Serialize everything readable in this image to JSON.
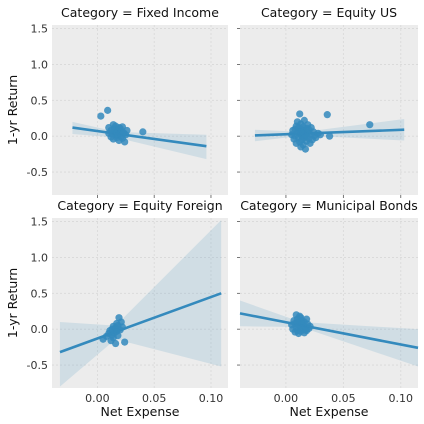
{
  "colors": {
    "point": "#348abd",
    "line": "#348abd",
    "band": "#348abd",
    "panel_bg": "#ececec"
  },
  "chart_data": {
    "type": "scatter",
    "facet_by": "Category",
    "shared_x": true,
    "shared_y": true,
    "xlabel": "Net Expense",
    "ylabel": "1-yr Return",
    "xlim": [
      -0.04,
      0.115
    ],
    "ylim": [
      -0.82,
      1.55
    ],
    "x_ticks": [
      "0.00",
      "0.05",
      "0.10"
    ],
    "y_ticks": [
      "-0.5",
      "0.0",
      "0.5",
      "1.0",
      "1.5"
    ],
    "x_tick_values": [
      0.0,
      0.05,
      0.1
    ],
    "y_tick_values": [
      -0.5,
      0.0,
      0.5,
      1.0,
      1.5
    ],
    "grid": true,
    "panels": [
      {
        "title": "Category = Fixed Income",
        "points": [
          [
            0.003,
            0.28
          ],
          [
            0.009,
            0.36
          ],
          [
            0.01,
            0.12
          ],
          [
            0.012,
            0.08
          ],
          [
            0.013,
            0.03
          ],
          [
            0.014,
            0.16
          ],
          [
            0.014,
            -0.04
          ],
          [
            0.015,
            0.06
          ],
          [
            0.015,
            0.1
          ],
          [
            0.016,
            0.02
          ],
          [
            0.016,
            0.14
          ],
          [
            0.017,
            -0.02
          ],
          [
            0.017,
            0.05
          ],
          [
            0.018,
            0.09
          ],
          [
            0.018,
            0.01
          ],
          [
            0.019,
            0.12
          ],
          [
            0.019,
            -0.06
          ],
          [
            0.02,
            0.04
          ],
          [
            0.02,
            0.11
          ],
          [
            0.021,
            0.0
          ],
          [
            0.021,
            0.07
          ],
          [
            0.022,
            -0.03
          ],
          [
            0.022,
            0.13
          ],
          [
            0.023,
            0.05
          ],
          [
            0.024,
            -0.08
          ],
          [
            0.025,
            0.02
          ],
          [
            0.026,
            0.08
          ],
          [
            0.012,
            -0.01
          ],
          [
            0.01,
            0.04
          ],
          [
            0.04,
            0.06
          ]
        ],
        "fit": {
          "x": [
            -0.022,
            0.096
          ],
          "y": [
            0.12,
            -0.14
          ]
        },
        "band": {
          "x": [
            -0.022,
            0.017,
            0.096
          ],
          "upper": [
            0.2,
            0.06,
            0.02
          ],
          "lower": [
            0.03,
            -0.02,
            -0.32
          ]
        }
      },
      {
        "title": "Category = Equity US",
        "points": [
          [
            0.005,
            0.02
          ],
          [
            0.006,
            0.08
          ],
          [
            0.007,
            -0.04
          ],
          [
            0.008,
            0.1
          ],
          [
            0.008,
            0.0
          ],
          [
            0.009,
            0.14
          ],
          [
            0.009,
            -0.1
          ],
          [
            0.01,
            0.05
          ],
          [
            0.01,
            0.2
          ],
          [
            0.011,
            -0.02
          ],
          [
            0.011,
            0.12
          ],
          [
            0.012,
            0.31
          ],
          [
            0.012,
            -0.08
          ],
          [
            0.012,
            0.07
          ],
          [
            0.013,
            0.03
          ],
          [
            0.013,
            -0.15
          ],
          [
            0.013,
            0.17
          ],
          [
            0.014,
            0.0
          ],
          [
            0.014,
            0.09
          ],
          [
            0.014,
            -0.05
          ],
          [
            0.015,
            0.13
          ],
          [
            0.015,
            -0.12
          ],
          [
            0.015,
            0.04
          ],
          [
            0.016,
            0.22
          ],
          [
            0.016,
            -0.02
          ],
          [
            0.016,
            0.08
          ],
          [
            0.017,
            -0.18
          ],
          [
            0.017,
            0.01
          ],
          [
            0.018,
            0.11
          ],
          [
            0.018,
            -0.07
          ],
          [
            0.019,
            0.05
          ],
          [
            0.019,
            0.16
          ],
          [
            0.02,
            -0.03
          ],
          [
            0.02,
            0.09
          ],
          [
            0.021,
            -0.1
          ],
          [
            0.021,
            0.03
          ],
          [
            0.022,
            0.12
          ],
          [
            0.023,
            -0.05
          ],
          [
            0.024,
            0.06
          ],
          [
            0.025,
            0.01
          ],
          [
            0.026,
            -0.02
          ],
          [
            0.028,
            0.04
          ],
          [
            0.03,
            0.02
          ],
          [
            0.018,
            0.0
          ],
          [
            0.013,
            0.06
          ],
          [
            0.036,
            0.3
          ],
          [
            0.038,
            0.0
          ],
          [
            0.073,
            0.16
          ]
        ],
        "fit": {
          "x": [
            -0.027,
            0.103
          ],
          "y": [
            0.01,
            0.09
          ]
        },
        "band": {
          "x": [
            -0.027,
            0.016,
            0.103
          ],
          "upper": [
            0.09,
            0.06,
            0.24
          ],
          "lower": [
            -0.07,
            0.01,
            -0.06
          ]
        }
      },
      {
        "title": "Category = Equity Foreign",
        "points": [
          [
            0.005,
            -0.14
          ],
          [
            0.008,
            -0.1
          ],
          [
            0.01,
            -0.06
          ],
          [
            0.011,
            -0.02
          ],
          [
            0.012,
            -0.16
          ],
          [
            0.013,
            -0.08
          ],
          [
            0.013,
            0.0
          ],
          [
            0.014,
            -0.12
          ],
          [
            0.014,
            0.04
          ],
          [
            0.015,
            -0.05
          ],
          [
            0.016,
            -0.2
          ],
          [
            0.016,
            0.02
          ],
          [
            0.017,
            -0.03
          ],
          [
            0.017,
            0.08
          ],
          [
            0.018,
            -0.09
          ],
          [
            0.018,
            0.05
          ],
          [
            0.019,
            0.16
          ],
          [
            0.02,
            -0.01
          ],
          [
            0.021,
            0.1
          ],
          [
            0.022,
            0.03
          ],
          [
            0.024,
            -0.18
          ]
        ],
        "fit": {
          "x": [
            -0.033,
            0.109
          ],
          "y": [
            -0.32,
            0.5
          ]
        },
        "band": {
          "x": [
            -0.033,
            0.016,
            0.109
          ],
          "upper": [
            0.1,
            0.05,
            1.52
          ],
          "lower": [
            -0.8,
            -0.14,
            -0.52
          ]
        }
      },
      {
        "title": "Category = Municipal Bonds",
        "points": [
          [
            0.005,
            0.06
          ],
          [
            0.006,
            0.0
          ],
          [
            0.007,
            0.12
          ],
          [
            0.008,
            -0.04
          ],
          [
            0.008,
            0.08
          ],
          [
            0.009,
            0.2
          ],
          [
            0.009,
            0.02
          ],
          [
            0.01,
            -0.02
          ],
          [
            0.01,
            0.14
          ],
          [
            0.011,
            0.06
          ],
          [
            0.011,
            -0.06
          ],
          [
            0.012,
            0.1
          ],
          [
            0.012,
            0.18
          ],
          [
            0.013,
            0.02
          ],
          [
            0.013,
            -0.03
          ],
          [
            0.014,
            0.08
          ],
          [
            0.014,
            0.12
          ],
          [
            0.015,
            0.0
          ],
          [
            0.015,
            0.05
          ],
          [
            0.016,
            -0.05
          ],
          [
            0.016,
            0.1
          ],
          [
            0.017,
            0.03
          ],
          [
            0.018,
            0.14
          ],
          [
            0.018,
            -0.02
          ],
          [
            0.019,
            0.07
          ],
          [
            0.02,
            0.01
          ],
          [
            0.021,
            0.04
          ],
          [
            0.013,
            0.16
          ],
          [
            0.01,
            0.09
          ],
          [
            0.017,
            -0.01
          ]
        ],
        "fit": {
          "x": [
            -0.04,
            0.115
          ],
          "y": [
            0.22,
            -0.26
          ]
        },
        "band": {
          "x": [
            -0.04,
            0.013,
            0.115
          ],
          "upper": [
            0.4,
            0.1,
            0.0
          ],
          "lower": [
            0.04,
            0.03,
            -0.52
          ]
        }
      }
    ]
  }
}
